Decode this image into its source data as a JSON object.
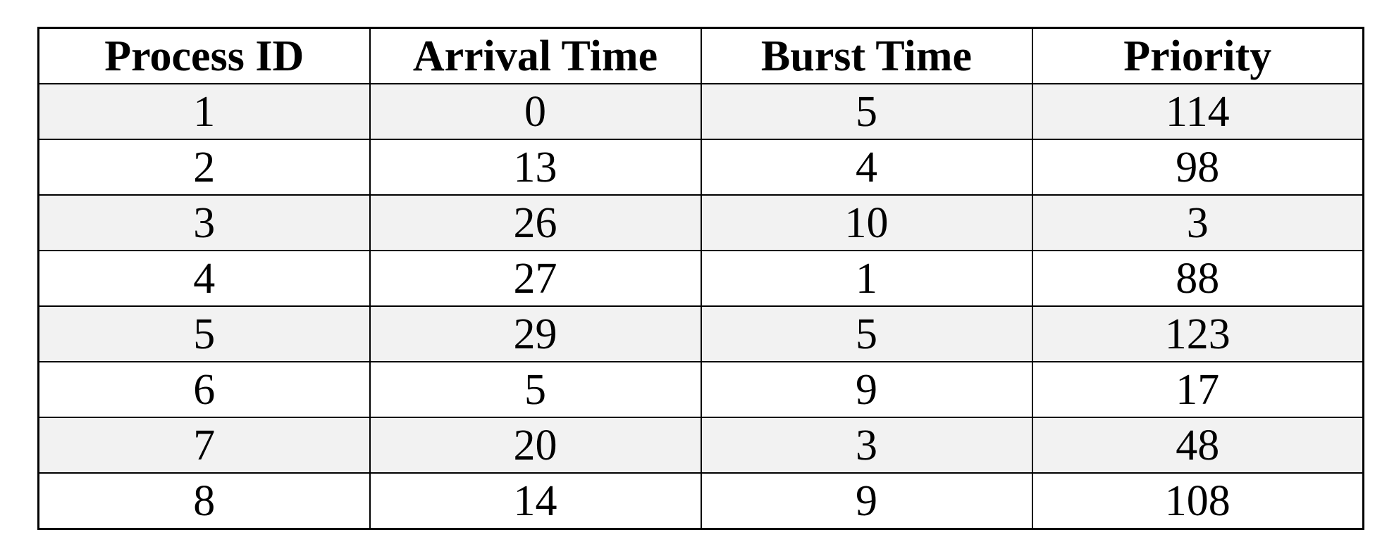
{
  "chart_data": {
    "type": "table",
    "columns": [
      "Process ID",
      "Arrival Time",
      "Burst Time",
      "Priority"
    ],
    "rows": [
      [
        "1",
        "0",
        "5",
        "114"
      ],
      [
        "2",
        "13",
        "4",
        "98"
      ],
      [
        "3",
        "26",
        "10",
        "3"
      ],
      [
        "4",
        "27",
        "1",
        "88"
      ],
      [
        "5",
        "29",
        "5",
        "123"
      ],
      [
        "6",
        "5",
        "9",
        "17"
      ],
      [
        "7",
        "20",
        "3",
        "48"
      ],
      [
        "8",
        "14",
        "9",
        "108"
      ]
    ],
    "colors": {
      "border": "#000000",
      "stripe": "#f2f2f2",
      "background": "#ffffff"
    }
  }
}
